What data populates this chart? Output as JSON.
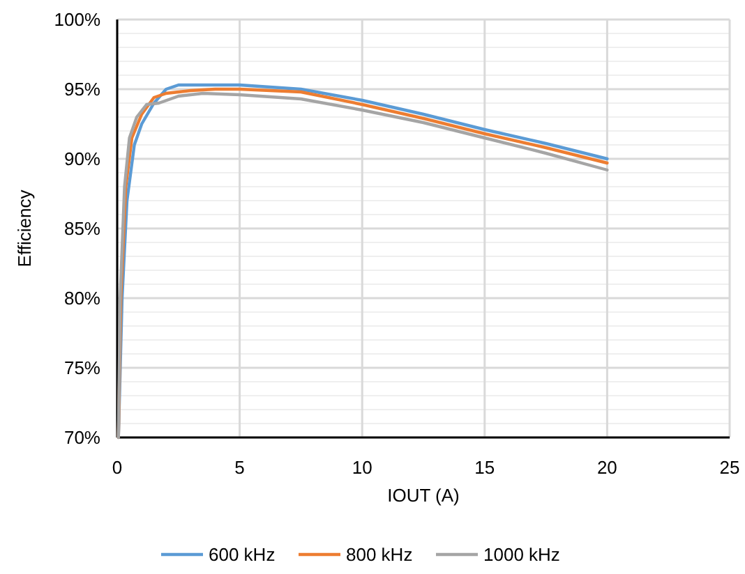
{
  "chart_data": {
    "type": "line",
    "xlabel": "IOUT (A)",
    "ylabel": "Efficiency",
    "xlim": [
      0,
      25
    ],
    "xticks": [
      0,
      5,
      10,
      15,
      20,
      25
    ],
    "ylim": [
      70,
      100
    ],
    "yticks": [
      {
        "value": 70,
        "label": "70%"
      },
      {
        "value": 71,
        "label": null
      },
      {
        "value": 72,
        "label": null
      },
      {
        "value": 73,
        "label": null
      },
      {
        "value": 74,
        "label": null
      },
      {
        "value": 75,
        "label": "75%"
      },
      {
        "value": 76,
        "label": null
      },
      {
        "value": 77,
        "label": null
      },
      {
        "value": 78,
        "label": null
      },
      {
        "value": 79,
        "label": null
      },
      {
        "value": 80,
        "label": "80%"
      },
      {
        "value": 81,
        "label": null
      },
      {
        "value": 82,
        "label": null
      },
      {
        "value": 83,
        "label": null
      },
      {
        "value": 84,
        "label": null
      },
      {
        "value": 85,
        "label": "85%"
      },
      {
        "value": 86,
        "label": null
      },
      {
        "value": 87,
        "label": null
      },
      {
        "value": 88,
        "label": null
      },
      {
        "value": 89,
        "label": null
      },
      {
        "value": 90,
        "label": "90%"
      },
      {
        "value": 91,
        "label": null
      },
      {
        "value": 92,
        "label": null
      },
      {
        "value": 93,
        "label": null
      },
      {
        "value": 94,
        "label": null
      },
      {
        "value": 95,
        "label": "95%"
      },
      {
        "value": 96,
        "label": null
      },
      {
        "value": 97,
        "label": null
      },
      {
        "value": 98,
        "label": null
      },
      {
        "value": 99,
        "label": null
      },
      {
        "value": 100,
        "label": "100%"
      }
    ],
    "grid": true,
    "legend": "bottom",
    "marker": "none",
    "line_style": "solid",
    "series": [
      {
        "name": "600 kHz",
        "color": "#5b9bd5",
        "x": [
          0.05,
          0.2,
          0.4,
          0.7,
          1.0,
          1.5,
          2,
          2.5,
          3,
          5,
          7.5,
          10,
          12.5,
          15,
          17.5,
          20
        ],
        "values": [
          70,
          80,
          87,
          91,
          92.5,
          94,
          95,
          95.3,
          95.3,
          95.3,
          95,
          94.2,
          93.2,
          92.1,
          91.1,
          90
        ]
      },
      {
        "name": "800 kHz",
        "color": "#ed7d31",
        "x": [
          0.05,
          0.15,
          0.35,
          0.6,
          1,
          1.5,
          2,
          3,
          4,
          5,
          7.5,
          10,
          12.5,
          15,
          17.5,
          20
        ],
        "values": [
          70,
          80,
          88,
          91.5,
          93.2,
          94.4,
          94.7,
          94.9,
          95,
          95,
          94.8,
          93.9,
          92.9,
          91.8,
          90.8,
          89.7
        ]
      },
      {
        "name": "1000 kHz",
        "color": "#a5a5a5",
        "x": [
          0.05,
          0.12,
          0.3,
          0.5,
          0.8,
          1.2,
          1.7,
          2.5,
          3.5,
          5,
          7.5,
          10,
          12.5,
          15,
          17.5,
          20
        ],
        "values": [
          70,
          80,
          88,
          91.5,
          93,
          93.9,
          94,
          94.5,
          94.7,
          94.6,
          94.3,
          93.5,
          92.6,
          91.5,
          90.4,
          89.2
        ]
      }
    ]
  }
}
